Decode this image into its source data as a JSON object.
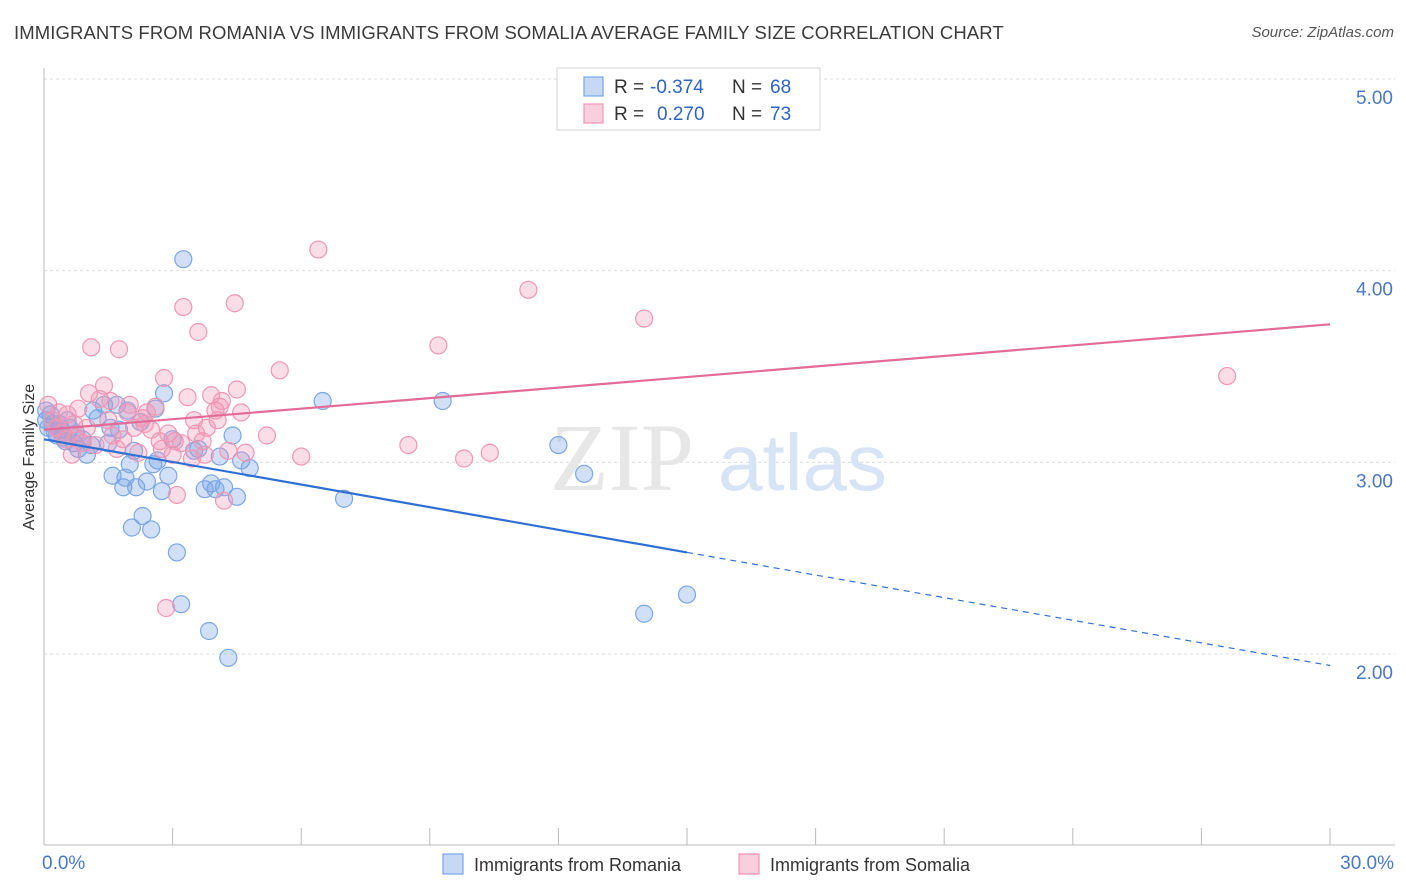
{
  "title": "IMMIGRANTS FROM ROMANIA VS IMMIGRANTS FROM SOMALIA AVERAGE FAMILY SIZE CORRELATION CHART",
  "source": "Source: ZipAtlas.com",
  "watermark": {
    "zip": "ZIP",
    "atlas": "atlas"
  },
  "legend": {
    "rows": [
      {
        "r_label": "R =",
        "r_value": "-0.374",
        "n_label": "N =",
        "n_value": "68",
        "color": "#7aa6e6"
      },
      {
        "r_label": "R =",
        "r_value": "0.270",
        "n_label": "N =",
        "n_value": "73",
        "color": "#f096b4"
      }
    ]
  },
  "chart_data": {
    "type": "scatter",
    "xlabel": "",
    "ylabel": "Average Family Size",
    "xlim": [
      0,
      30
    ],
    "ylim": [
      1.25,
      5.1
    ],
    "x_tick_labels": [
      {
        "value": 0,
        "label": "0.0%"
      },
      {
        "value": 30,
        "label": "30.0%"
      }
    ],
    "y_tick_labels": [
      {
        "value": 2,
        "label": "2.00"
      },
      {
        "value": 3,
        "label": "3.00"
      },
      {
        "value": 4,
        "label": "4.00"
      },
      {
        "value": 5,
        "label": "5.00"
      }
    ],
    "grid": true,
    "legend_position": "top-center",
    "series": [
      {
        "name": "Immigrants from Romania",
        "color": "#7aa6e6",
        "line_color": "#2f6fd4",
        "trend": {
          "x0": 0,
          "y0": 3.12,
          "x1": 15,
          "y1": 2.53,
          "dashed_to_x": 30,
          "dashed_to_y": 1.94
        },
        "points": [
          [
            0.05,
            3.22
          ],
          [
            0.1,
            3.18
          ],
          [
            0.15,
            3.25
          ],
          [
            0.2,
            3.2
          ],
          [
            0.25,
            3.16
          ],
          [
            0.3,
            3.14
          ],
          [
            0.35,
            3.2
          ],
          [
            0.4,
            3.17
          ],
          [
            0.45,
            3.13
          ],
          [
            0.5,
            3.11
          ],
          [
            0.55,
            3.22
          ],
          [
            0.6,
            3.18
          ],
          [
            0.7,
            3.1
          ],
          [
            0.75,
            3.15
          ],
          [
            0.8,
            3.07
          ],
          [
            0.9,
            3.12
          ],
          [
            1.0,
            3.04
          ],
          [
            1.1,
            3.09
          ],
          [
            1.15,
            3.27
          ],
          [
            1.25,
            3.23
          ],
          [
            1.4,
            3.3
          ],
          [
            1.5,
            3.1
          ],
          [
            1.55,
            3.18
          ],
          [
            1.6,
            2.93
          ],
          [
            1.7,
            3.3
          ],
          [
            1.75,
            3.17
          ],
          [
            1.85,
            2.87
          ],
          [
            1.9,
            2.92
          ],
          [
            2.0,
            2.99
          ],
          [
            1.95,
            3.27
          ],
          [
            2.05,
            2.66
          ],
          [
            2.1,
            3.06
          ],
          [
            2.15,
            2.87
          ],
          [
            2.25,
            3.21
          ],
          [
            2.3,
            2.72
          ],
          [
            2.4,
            2.9
          ],
          [
            2.5,
            2.65
          ],
          [
            2.55,
            2.99
          ],
          [
            2.6,
            3.28
          ],
          [
            2.65,
            3.01
          ],
          [
            2.75,
            2.85
          ],
          [
            2.8,
            3.36
          ],
          [
            2.9,
            2.93
          ],
          [
            3.0,
            3.12
          ],
          [
            3.1,
            2.53
          ],
          [
            3.2,
            2.26
          ],
          [
            3.25,
            4.06
          ],
          [
            3.5,
            3.06
          ],
          [
            3.6,
            3.07
          ],
          [
            3.75,
            2.86
          ],
          [
            3.85,
            2.12
          ],
          [
            3.9,
            2.89
          ],
          [
            4.0,
            2.86
          ],
          [
            4.1,
            3.03
          ],
          [
            4.2,
            2.87
          ],
          [
            4.3,
            1.98
          ],
          [
            4.4,
            3.14
          ],
          [
            4.5,
            2.82
          ],
          [
            4.6,
            3.01
          ],
          [
            4.8,
            2.97
          ],
          [
            6.5,
            3.32
          ],
          [
            7.0,
            2.81
          ],
          [
            9.3,
            3.32
          ],
          [
            12.0,
            3.09
          ],
          [
            12.6,
            2.94
          ],
          [
            14.0,
            2.21
          ],
          [
            15.0,
            2.31
          ],
          [
            0.05,
            3.27
          ]
        ]
      },
      {
        "name": "Immigrants from Somalia",
        "color": "#f096b4",
        "line_color": "#e36b97",
        "trend": {
          "x0": 0,
          "y0": 3.17,
          "x1": 30,
          "y1": 3.72
        },
        "points": [
          [
            0.1,
            3.3
          ],
          [
            0.2,
            3.22
          ],
          [
            0.3,
            3.18
          ],
          [
            0.4,
            3.15
          ],
          [
            0.5,
            3.12
          ],
          [
            0.55,
            3.25
          ],
          [
            0.65,
            3.04
          ],
          [
            0.7,
            3.2
          ],
          [
            0.8,
            3.28
          ],
          [
            0.9,
            3.1
          ],
          [
            1.0,
            3.18
          ],
          [
            1.05,
            3.36
          ],
          [
            1.1,
            3.6
          ],
          [
            1.2,
            3.09
          ],
          [
            1.3,
            3.33
          ],
          [
            1.4,
            3.4
          ],
          [
            1.5,
            3.22
          ],
          [
            1.6,
            3.14
          ],
          [
            1.7,
            3.07
          ],
          [
            1.75,
            3.59
          ],
          [
            1.85,
            3.12
          ],
          [
            1.95,
            3.26
          ],
          [
            2.0,
            3.3
          ],
          [
            2.1,
            3.18
          ],
          [
            2.2,
            3.05
          ],
          [
            2.3,
            3.23
          ],
          [
            2.4,
            3.26
          ],
          [
            2.5,
            3.17
          ],
          [
            2.6,
            3.29
          ],
          [
            2.7,
            3.11
          ],
          [
            2.75,
            3.07
          ],
          [
            2.8,
            3.44
          ],
          [
            2.85,
            2.24
          ],
          [
            2.9,
            3.15
          ],
          [
            3.0,
            3.04
          ],
          [
            3.05,
            3.11
          ],
          [
            3.1,
            2.83
          ],
          [
            3.2,
            3.1
          ],
          [
            3.25,
            3.81
          ],
          [
            3.35,
            3.34
          ],
          [
            3.45,
            3.02
          ],
          [
            3.5,
            3.22
          ],
          [
            3.6,
            3.68
          ],
          [
            3.7,
            3.11
          ],
          [
            3.75,
            3.04
          ],
          [
            3.8,
            3.18
          ],
          [
            3.9,
            3.35
          ],
          [
            4.0,
            3.27
          ],
          [
            4.05,
            3.22
          ],
          [
            4.1,
            3.29
          ],
          [
            4.15,
            3.32
          ],
          [
            4.2,
            2.8
          ],
          [
            4.3,
            3.06
          ],
          [
            4.45,
            3.83
          ],
          [
            4.5,
            3.38
          ],
          [
            4.6,
            3.26
          ],
          [
            4.7,
            3.05
          ],
          [
            5.2,
            3.14
          ],
          [
            5.5,
            3.48
          ],
          [
            6.0,
            3.03
          ],
          [
            6.4,
            4.11
          ],
          [
            8.5,
            3.09
          ],
          [
            9.2,
            3.61
          ],
          [
            9.8,
            3.02
          ],
          [
            10.4,
            3.05
          ],
          [
            11.3,
            3.9
          ],
          [
            14.0,
            3.75
          ],
          [
            27.6,
            3.45
          ],
          [
            3.55,
            3.15
          ],
          [
            2.35,
            3.2
          ],
          [
            1.55,
            3.32
          ],
          [
            0.35,
            3.26
          ],
          [
            0.75,
            3.13
          ]
        ]
      }
    ]
  }
}
